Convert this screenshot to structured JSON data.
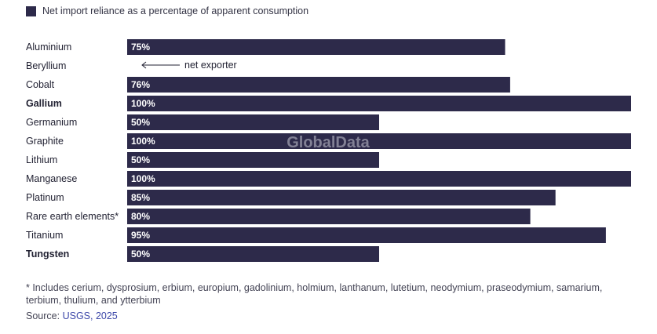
{
  "legend": {
    "label": "Net import reliance as a percentage of apparent consumption",
    "color": "#2d2a4a"
  },
  "watermark": "GlobalData",
  "footnote": "* Includes cerium, dysprosium, erbium, europium, gadolinium, holmium, lanthanum, lutetium, neodymium, praseodymium, samarium, terbium, thulium, and ytterbium",
  "source": {
    "prefix": "Source:",
    "link": "USGS, 2025"
  },
  "chart_data": {
    "type": "bar",
    "orientation": "horizontal",
    "title": "",
    "xlabel": "",
    "ylabel": "",
    "xlim": [
      0,
      100
    ],
    "categories": [
      "Aluminium",
      "Beryllium",
      "Cobalt",
      "Gallium",
      "Germanium",
      "Graphite",
      "Lithium",
      "Manganese",
      "Platinum",
      "Rare earth elements*",
      "Titanium",
      "Tungsten"
    ],
    "values": [
      75,
      null,
      76,
      100,
      50,
      100,
      50,
      100,
      85,
      80,
      95,
      50
    ],
    "value_labels": [
      "75%",
      "",
      "76%",
      "100%",
      "50%",
      "100%",
      "50%",
      "100%",
      "85%",
      "80%",
      "95%",
      "50%"
    ],
    "bold_categories": [
      "Gallium",
      "Tungsten"
    ],
    "annotations": [
      {
        "category": "Beryllium",
        "text": "net exporter"
      }
    ],
    "bar_color": "#2d2a4a"
  }
}
